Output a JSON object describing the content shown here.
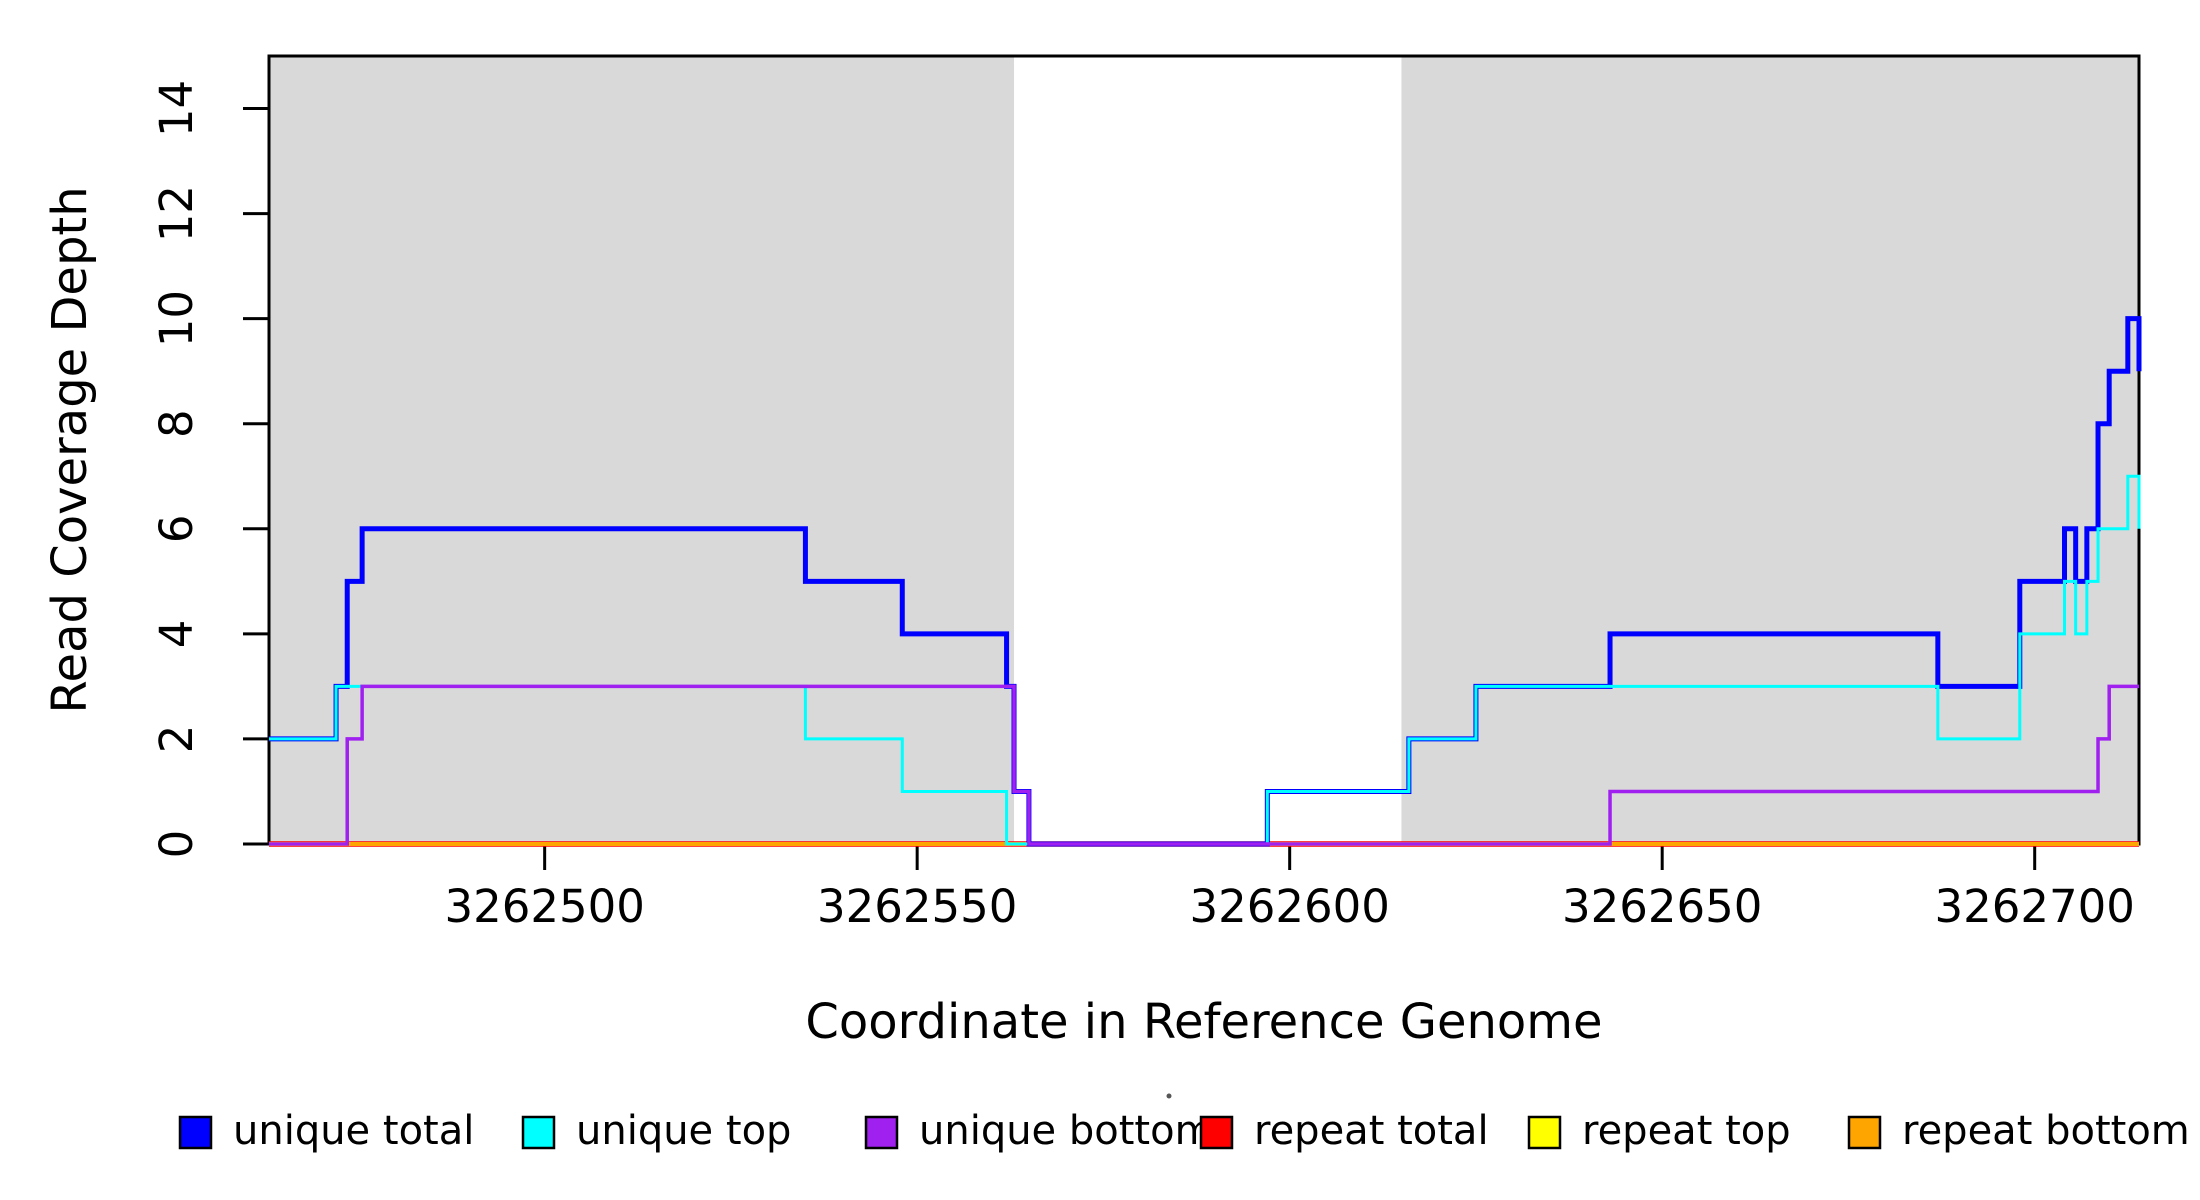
{
  "chart_data": {
    "type": "line",
    "subtype": "step",
    "title": "",
    "xlabel": "Coordinate in Reference Genome",
    "ylabel": "Read Coverage Depth",
    "xlim": [
      3262463,
      3262714
    ],
    "ylim": [
      0,
      15
    ],
    "x_ticks": [
      3262500,
      3262550,
      3262600,
      3262650,
      3262700
    ],
    "y_ticks": [
      0,
      2,
      4,
      6,
      8,
      10,
      12,
      14
    ],
    "grid": false,
    "legend_position": "bottom",
    "background_color": "#ffffff",
    "shaded_region_color": "#d9d9d9",
    "axis_color": "#000000",
    "shaded_regions": [
      {
        "x1": 3262463,
        "x2": 3262563
      },
      {
        "x1": 3262615,
        "x2": 3262714
      }
    ],
    "series": [
      {
        "name": "repeat-total",
        "label": "repeat total",
        "color": "#ff0000",
        "lwd": 5.5,
        "steps": [
          [
            3262463,
            0
          ]
        ]
      },
      {
        "name": "repeat-top",
        "label": "repeat top",
        "color": "#ffff00",
        "lwd": 3,
        "steps": [
          [
            3262463,
            0
          ]
        ]
      },
      {
        "name": "repeat-bottom",
        "label": "repeat bottom",
        "color": "#ffa500",
        "lwd": 4,
        "steps": [
          [
            3262463,
            0
          ]
        ]
      },
      {
        "name": "unique-total",
        "label": "unique total",
        "color": "#0000ff",
        "lwd": 5,
        "steps": [
          [
            3262463,
            2
          ],
          [
            3262472,
            3
          ],
          [
            3262473.5,
            5
          ],
          [
            3262475.5,
            6
          ],
          [
            3262535,
            5
          ],
          [
            3262548,
            4
          ],
          [
            3262562,
            3
          ],
          [
            3262563,
            1
          ],
          [
            3262565,
            0
          ],
          [
            3262597,
            1
          ],
          [
            3262616,
            2
          ],
          [
            3262625,
            3
          ],
          [
            3262643,
            4
          ],
          [
            3262687,
            3
          ],
          [
            3262698,
            5
          ],
          [
            3262704,
            6
          ],
          [
            3262705.5,
            5
          ],
          [
            3262707,
            6
          ],
          [
            3262708.5,
            8
          ],
          [
            3262710,
            9
          ],
          [
            3262712.5,
            10
          ],
          [
            3262714,
            9
          ]
        ]
      },
      {
        "name": "unique-top",
        "label": "unique top",
        "color": "#00ffff",
        "lwd": 3,
        "steps": [
          [
            3262463,
            2
          ],
          [
            3262472,
            3
          ],
          [
            3262535,
            2
          ],
          [
            3262548,
            1
          ],
          [
            3262562,
            0
          ],
          [
            3262597,
            1
          ],
          [
            3262616,
            2
          ],
          [
            3262625,
            3
          ],
          [
            3262687,
            2
          ],
          [
            3262698,
            4
          ],
          [
            3262704,
            5
          ],
          [
            3262705.5,
            4
          ],
          [
            3262707,
            5
          ],
          [
            3262708.5,
            6
          ],
          [
            3262712.5,
            7
          ],
          [
            3262714,
            6
          ]
        ]
      },
      {
        "name": "unique-bottom",
        "label": "unique bottom",
        "color": "#a020f0",
        "lwd": 3.5,
        "steps": [
          [
            3262463,
            0
          ],
          [
            3262473.5,
            2
          ],
          [
            3262475.5,
            3
          ],
          [
            3262563,
            1
          ],
          [
            3262565,
            0
          ],
          [
            3262643,
            1
          ],
          [
            3262708.5,
            2
          ],
          [
            3262710,
            3
          ]
        ]
      }
    ]
  },
  "legend": {
    "items": [
      {
        "label": "unique total",
        "color": "#0000ff"
      },
      {
        "label": "unique top",
        "color": "#00ffff"
      },
      {
        "label": "unique bottom",
        "color": "#a020f0"
      },
      {
        "label": "repeat total",
        "color": "#ff0000"
      },
      {
        "label": "repeat top",
        "color": "#ffff00"
      },
      {
        "label": "repeat bottom",
        "color": "#ffa500"
      }
    ]
  }
}
